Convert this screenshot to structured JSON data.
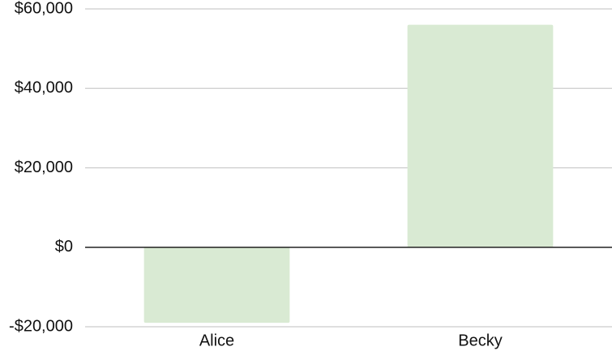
{
  "chart_data": {
    "type": "bar",
    "categories": [
      "Alice",
      "Becky"
    ],
    "values": [
      -19000,
      56000
    ],
    "ylim": [
      -20000,
      60000
    ],
    "yticks": [
      -20000,
      0,
      20000,
      40000,
      60000
    ],
    "ytick_labels": [
      "-$20,000",
      "$0",
      "$20,000",
      "$40,000",
      "$60,000"
    ],
    "grid": true,
    "bar_color": "#d9ead3",
    "gridline_color": "#cccccc",
    "zero_line_color": "#222222"
  }
}
